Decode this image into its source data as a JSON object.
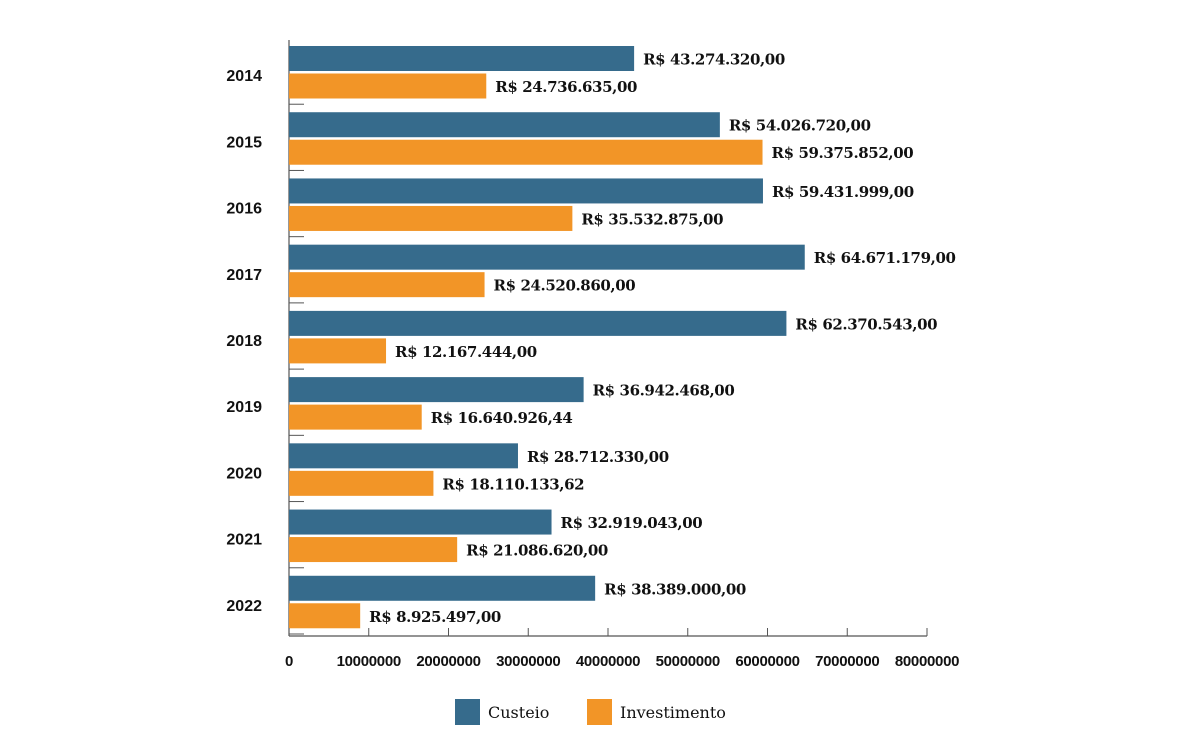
{
  "chart_data": {
    "type": "bar",
    "orientation": "horizontal",
    "categories": [
      "2014",
      "2015",
      "2016",
      "2017",
      "2018",
      "2019",
      "2020",
      "2021",
      "2022"
    ],
    "series": [
      {
        "name": "Custeio",
        "color": "#366b8c",
        "values": [
          43274320.0,
          54026720.0,
          59431999.0,
          64671179.0,
          62370543.0,
          36942468.0,
          28712330.0,
          32919043.0,
          38389000.0
        ],
        "labels": [
          "R$ 43.274.320,00",
          "R$ 54.026.720,00",
          "R$ 59.431.999,00",
          "R$ 64.671.179,00",
          "R$ 62.370.543,00",
          "R$ 36.942.468,00",
          "R$ 28.712.330,00",
          "R$ 32.919.043,00",
          "R$ 38.389.000,00"
        ]
      },
      {
        "name": "Investimento",
        "color": "#f29527",
        "values": [
          24736635.0,
          59375852.0,
          35532875.0,
          24520860.0,
          12167444.0,
          16640926.44,
          18110133.62,
          21086620.0,
          8925497.0
        ],
        "labels": [
          "R$ 24.736.635,00",
          "R$ 59.375.852,00",
          "R$ 35.532.875,00",
          "R$ 24.520.860,00",
          "R$ 12.167.444,00",
          "R$ 16.640.926,44",
          "R$ 18.110.133,62",
          "R$ 21.086.620,00",
          "R$ 8.925.497,00"
        ]
      }
    ],
    "xlim": [
      0,
      80000000
    ],
    "xticks": [
      "0",
      "10000000",
      "20000000",
      "30000000",
      "40000000",
      "50000000",
      "60000000",
      "70000000",
      "80000000"
    ],
    "grid": false,
    "legend_position": "bottom",
    "legend": [
      "Custeio",
      "Investimento"
    ]
  }
}
